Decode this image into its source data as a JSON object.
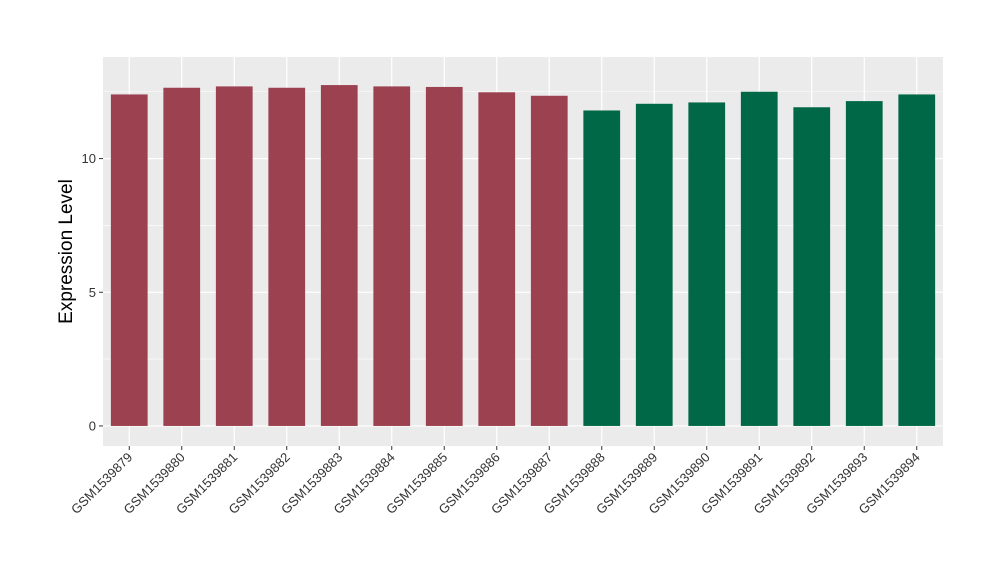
{
  "chart_data": {
    "type": "bar",
    "title": "",
    "xlabel": "",
    "ylabel": "Expression Level",
    "ylim": [
      -0.75,
      13.8
    ],
    "yticks": [
      0,
      5,
      10
    ],
    "grid": true,
    "legend": "none",
    "categories": [
      "GSM1539879",
      "GSM1539880",
      "GSM1539881",
      "GSM1539882",
      "GSM1539883",
      "GSM1539884",
      "GSM1539885",
      "GSM1539886",
      "GSM1539887",
      "GSM1539888",
      "GSM1539889",
      "GSM1539890",
      "GSM1539891",
      "GSM1539892",
      "GSM1539893",
      "GSM1539894"
    ],
    "values": [
      12.4,
      12.65,
      12.7,
      12.65,
      12.75,
      12.7,
      12.68,
      12.48,
      12.35,
      11.8,
      12.05,
      12.1,
      12.5,
      11.92,
      12.15,
      12.4
    ],
    "bar_colors": [
      "#9b4150",
      "#9b4150",
      "#9b4150",
      "#9b4150",
      "#9b4150",
      "#9b4150",
      "#9b4150",
      "#9b4150",
      "#9b4150",
      "#006846",
      "#006846",
      "#006846",
      "#006846",
      "#006846",
      "#006846",
      "#006846"
    ],
    "panel_background": "#ebebeb",
    "grid_color": "#ffffff"
  }
}
